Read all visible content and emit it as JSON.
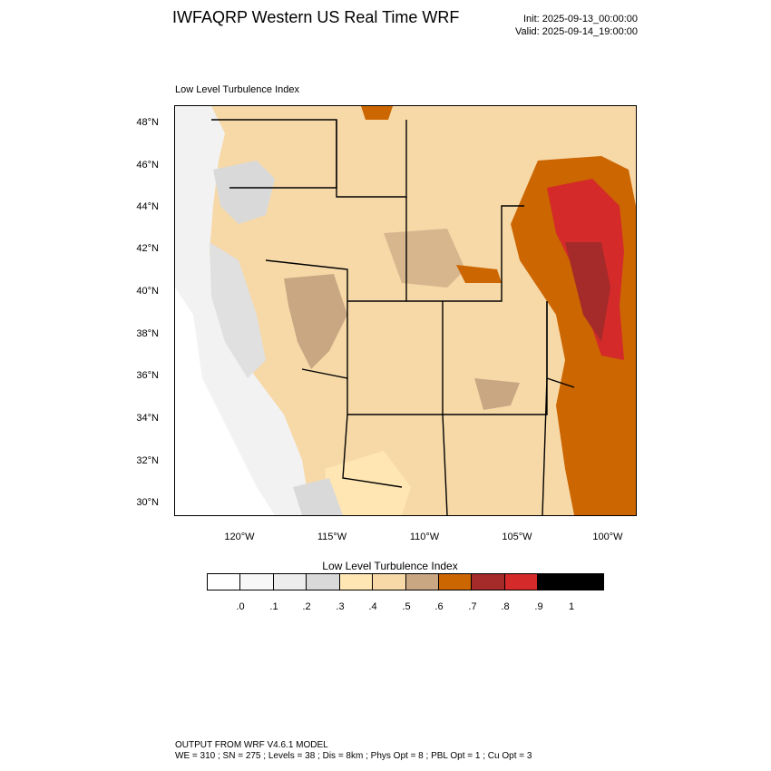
{
  "header": {
    "title": "IWFAQRP Western US Real Time WRF",
    "init": "Init: 2025-09-13_00:00:00",
    "valid": "Valid: 2025-09-14_19:00:00"
  },
  "map": {
    "subtitle": "Low Level Turbulence Index",
    "lat_labels": [
      "48°N",
      "46°N",
      "44°N",
      "42°N",
      "40°N",
      "38°N",
      "36°N",
      "34°N",
      "32°N",
      "30°N"
    ],
    "lon_labels": [
      "120°W",
      "115°W",
      "110°W",
      "105°W",
      "100°W"
    ],
    "lat_range": [
      29.5,
      48.8
    ],
    "lon_range": [
      -123.8,
      -98.4
    ]
  },
  "colorbar": {
    "title": "Low Level Turbulence Index",
    "labels": [
      ".0",
      ".1",
      ".2",
      ".3",
      ".4",
      ".5",
      ".6",
      ".7",
      ".8",
      ".9",
      "1"
    ],
    "colors": [
      "#ffffff",
      "#f7f7f7",
      "#ededed",
      "#d9d9d9",
      "#ffe6b3",
      "#f7d9a8",
      "#c9a783",
      "#cc6600",
      "#a52a2a",
      "#d42a2a",
      "#000000"
    ]
  },
  "footer": {
    "line1": "OUTPUT FROM WRF V4.6.1 MODEL",
    "line2": "WE = 310 ; SN = 275 ; Levels = 38 ; Dis = 8km ; Phys Opt = 8 ; PBL Opt = 1 ; Cu Opt = 3"
  }
}
